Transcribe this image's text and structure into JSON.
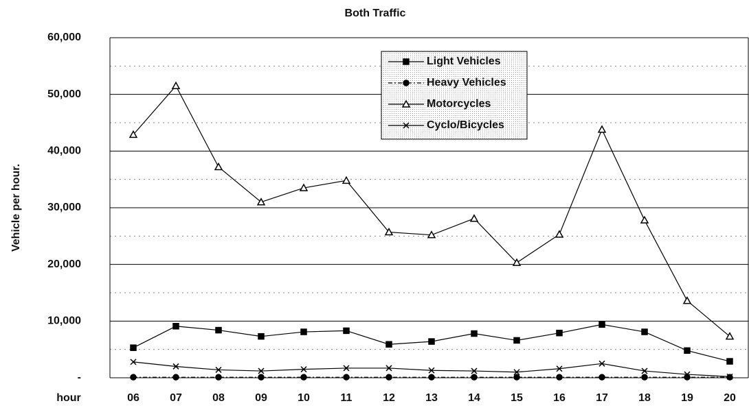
{
  "chart_data": {
    "type": "line",
    "title": "Both Traffic",
    "y_label": "Vehicle per hour.",
    "x_label": "hour",
    "categories": [
      "06",
      "07",
      "08",
      "09",
      "10",
      "11",
      "12",
      "13",
      "14",
      "15",
      "16",
      "17",
      "18",
      "19",
      "20"
    ],
    "series": [
      {
        "name": "Light Vehicles",
        "color": "#000000",
        "marker": "square",
        "dash": "solid",
        "values": [
          5300,
          9100,
          8400,
          7300,
          8100,
          8300,
          5900,
          6400,
          7800,
          6600,
          7900,
          9400,
          8100,
          4800,
          2900
        ]
      },
      {
        "name": "Heavy Vehicles",
        "color": "#000000",
        "marker": "circle",
        "dash": "dashdot",
        "values": [
          100,
          100,
          100,
          100,
          100,
          100,
          100,
          100,
          100,
          100,
          100,
          100,
          100,
          100,
          100
        ]
      },
      {
        "name": "Motorcycles",
        "color": "#000000",
        "marker": "triangle",
        "dash": "solid",
        "values": [
          42900,
          51500,
          37200,
          31000,
          33500,
          34800,
          25700,
          25200,
          28100,
          20300,
          25300,
          43800,
          27800,
          13600,
          7300
        ]
      },
      {
        "name": "Cyclo/Bicycles",
        "color": "#000000",
        "marker": "x",
        "dash": "solid",
        "values": [
          2800,
          2000,
          1400,
          1200,
          1500,
          1700,
          1700,
          1300,
          1200,
          1000,
          1600,
          2500,
          1200,
          600,
          200
        ]
      }
    ],
    "ylim": [
      0,
      60000
    ],
    "yticks": [
      {
        "value": 0,
        "label": "-"
      },
      {
        "value": 10000,
        "label": "10,000"
      },
      {
        "value": 20000,
        "label": "20,000"
      },
      {
        "value": 30000,
        "label": "30,000"
      },
      {
        "value": 40000,
        "label": "40,000"
      },
      {
        "value": 50000,
        "label": "50,000"
      },
      {
        "value": 60000,
        "label": "60,000"
      }
    ],
    "minor_yticks": [
      5000,
      15000,
      25000,
      35000,
      45000,
      55000
    ],
    "grid": true,
    "legend": "top"
  }
}
